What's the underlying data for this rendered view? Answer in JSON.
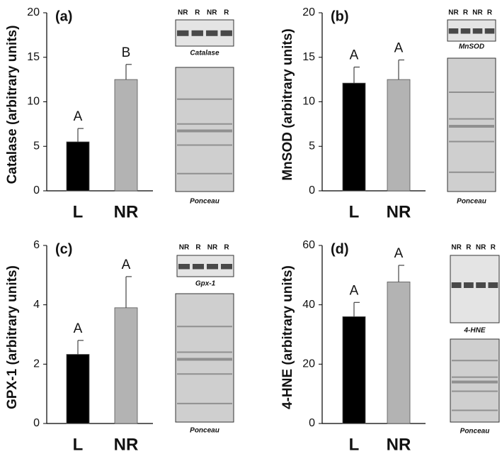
{
  "chart_data": [
    {
      "type": "bar",
      "panel": "(a)",
      "y_label": "Catalase  (arbitrary units)",
      "categories": [
        "L",
        "NR"
      ],
      "values": [
        5.5,
        12.5
      ],
      "errors": [
        1.5,
        1.7
      ],
      "letters": [
        "A",
        "B"
      ],
      "colors": [
        "#000000",
        "#b3b3b3"
      ],
      "ylim": [
        0,
        20
      ],
      "yticks": [
        0,
        5,
        10,
        15,
        20
      ],
      "lanes": [
        "NR",
        "R",
        "NR",
        "R"
      ],
      "blot_label": "Catalase",
      "stain_label": "Ponceau"
    },
    {
      "type": "bar",
      "panel": "(b)",
      "y_label": "MnSOD (arbitrary units)",
      "categories": [
        "L",
        "NR"
      ],
      "values": [
        12.1,
        12.5
      ],
      "errors": [
        1.8,
        2.2
      ],
      "letters": [
        "A",
        "A"
      ],
      "colors": [
        "#000000",
        "#b3b3b3"
      ],
      "ylim": [
        0,
        20
      ],
      "yticks": [
        0,
        5,
        10,
        15,
        20
      ],
      "lanes": [
        "NR",
        "R",
        "NR",
        "R"
      ],
      "blot_label": "MnSOD",
      "stain_label": "Ponceau"
    },
    {
      "type": "bar",
      "panel": "(c)",
      "y_label": "GPX-1 (arbitrary units)",
      "categories": [
        "L",
        "NR"
      ],
      "values": [
        2.33,
        3.9
      ],
      "errors": [
        0.47,
        1.05
      ],
      "letters": [
        "A",
        "A"
      ],
      "colors": [
        "#000000",
        "#b3b3b3"
      ],
      "ylim": [
        0,
        6
      ],
      "yticks": [
        0,
        2,
        4,
        6
      ],
      "lanes": [
        "NR",
        "R",
        "NR",
        "R"
      ],
      "blot_label": "Gpx-1",
      "stain_label": "Ponceau"
    },
    {
      "type": "bar",
      "panel": "(d)",
      "y_label": "4-HNE (arbitrary units)",
      "categories": [
        "L",
        "NR"
      ],
      "values": [
        36,
        47.7
      ],
      "errors": [
        4.8,
        5.6
      ],
      "letters": [
        "A",
        "A"
      ],
      "colors": [
        "#000000",
        "#b3b3b3"
      ],
      "ylim": [
        0,
        60
      ],
      "yticks": [
        0,
        20,
        40,
        60
      ],
      "lanes": [
        "NR",
        "R",
        "NR",
        "R"
      ],
      "blot_label": "4-HNE",
      "stain_label": "Ponceau"
    }
  ]
}
